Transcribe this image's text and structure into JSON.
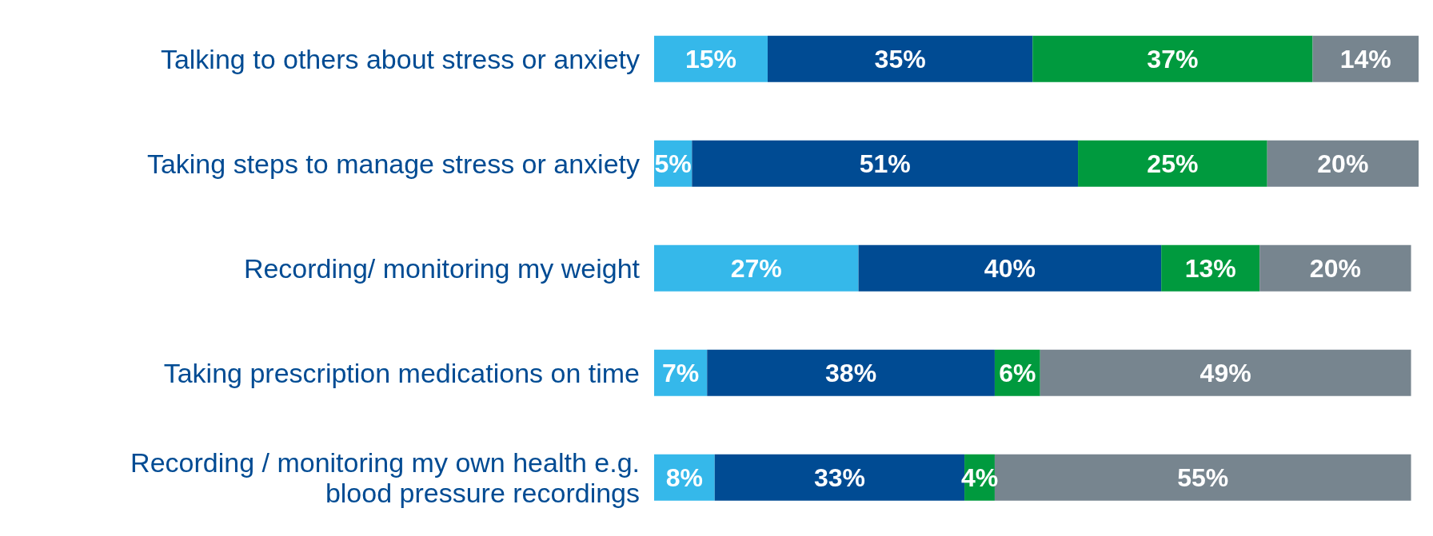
{
  "chart_data": {
    "type": "bar",
    "orientation": "horizontal",
    "stacked": true,
    "tick_labels": "y",
    "categories": [
      "Talking to others about stress or anxiety",
      "Taking steps to manage stress or anxiety",
      "Recording/ monitoring my weight",
      "Taking prescription medications on time",
      "Recording / monitoring my own health e.g. blood pressure recordings"
    ],
    "series": [
      {
        "color": "#35b8ea",
        "values": [
          15,
          5,
          27,
          7,
          8
        ],
        "value_labels": [
          "15%",
          "5%",
          "27%",
          "7%",
          "8%"
        ]
      },
      {
        "color": "#004b93",
        "values": [
          35,
          51,
          40,
          38,
          33
        ],
        "value_labels": [
          "35%",
          "51%",
          "40%",
          "38%",
          "33%"
        ]
      },
      {
        "color": "#009a3e",
        "values": [
          37,
          25,
          13,
          6,
          4
        ],
        "value_labels": [
          "37%",
          "25%",
          "13%",
          "6%",
          "4%"
        ]
      },
      {
        "color": "#77858f",
        "values": [
          14,
          20,
          20,
          49,
          55
        ],
        "value_labels": [
          "14%",
          "20%",
          "20%",
          "49%",
          "55%"
        ]
      }
    ],
    "grid": false,
    "legend": false
  }
}
